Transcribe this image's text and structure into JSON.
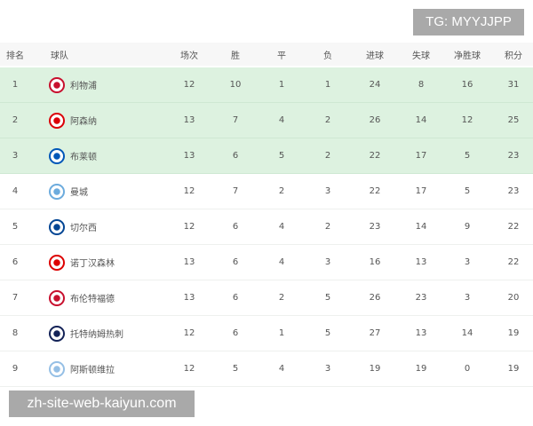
{
  "watermark_top": "TG: MYYJJPP",
  "watermark_bottom": "zh-site-web-kaiyun.com",
  "colors": {
    "highlight_row": "#ddf2e0",
    "header_bg": "#f7f7f7"
  },
  "headers": [
    "排名",
    "球队",
    "场次",
    "胜",
    "平",
    "负",
    "进球",
    "失球",
    "净胜球",
    "积分"
  ],
  "rows": [
    {
      "rank": "1",
      "team": "利物浦",
      "icon": "liverpool-crest-icon",
      "color": "#c8102e",
      "played": "12",
      "w": "10",
      "d": "1",
      "l": "1",
      "gf": "24",
      "ga": "8",
      "gd": "16",
      "pts": "31",
      "highlight": true
    },
    {
      "rank": "2",
      "team": "阿森纳",
      "icon": "arsenal-crest-icon",
      "color": "#db0007",
      "played": "13",
      "w": "7",
      "d": "4",
      "l": "2",
      "gf": "26",
      "ga": "14",
      "gd": "12",
      "pts": "25",
      "highlight": true
    },
    {
      "rank": "3",
      "team": "布莱顿",
      "icon": "brighton-crest-icon",
      "color": "#0057b8",
      "played": "13",
      "w": "6",
      "d": "5",
      "l": "2",
      "gf": "22",
      "ga": "17",
      "gd": "5",
      "pts": "23",
      "highlight": true
    },
    {
      "rank": "4",
      "team": "曼城",
      "icon": "man-city-crest-icon",
      "color": "#6cabdd",
      "played": "12",
      "w": "7",
      "d": "2",
      "l": "3",
      "gf": "22",
      "ga": "17",
      "gd": "5",
      "pts": "23",
      "highlight": false
    },
    {
      "rank": "5",
      "team": "切尔西",
      "icon": "chelsea-crest-icon",
      "color": "#034694",
      "played": "12",
      "w": "6",
      "d": "4",
      "l": "2",
      "gf": "23",
      "ga": "14",
      "gd": "9",
      "pts": "22",
      "highlight": false
    },
    {
      "rank": "6",
      "team": "诺丁汉森林",
      "icon": "nottingham-forest-crest-icon",
      "color": "#dd0000",
      "played": "13",
      "w": "6",
      "d": "4",
      "l": "3",
      "gf": "16",
      "ga": "13",
      "gd": "3",
      "pts": "22",
      "highlight": false
    },
    {
      "rank": "7",
      "team": "布伦特福德",
      "icon": "brentford-crest-icon",
      "color": "#c8102e",
      "played": "13",
      "w": "6",
      "d": "2",
      "l": "5",
      "gf": "26",
      "ga": "23",
      "gd": "3",
      "pts": "20",
      "highlight": false
    },
    {
      "rank": "8",
      "team": "托特纳姆热刺",
      "icon": "tottenham-crest-icon",
      "color": "#132257",
      "played": "12",
      "w": "6",
      "d": "1",
      "l": "5",
      "gf": "27",
      "ga": "13",
      "gd": "14",
      "pts": "19",
      "highlight": false
    },
    {
      "rank": "9",
      "team": "阿斯顿维拉",
      "icon": "aston-villa-crest-icon",
      "color": "#95bfe5",
      "played": "12",
      "w": "5",
      "d": "4",
      "l": "3",
      "gf": "19",
      "ga": "19",
      "gd": "0",
      "pts": "19",
      "highlight": false
    }
  ]
}
